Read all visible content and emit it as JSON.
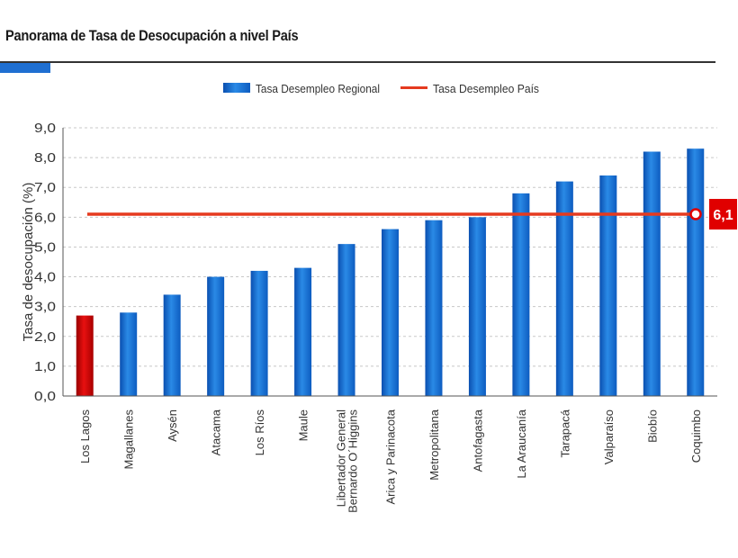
{
  "header": {
    "title": "Panorama de Tasa de Desocupación a nivel País"
  },
  "colors": {
    "bar": "#1f78d6",
    "bar_highlight": "#d20000",
    "reference_line": "#e53a1f",
    "callout_bg": "#e00000",
    "title_accent": "#1f6fd1"
  },
  "chart_data": {
    "type": "bar",
    "ylabel": "Tasa de desocupación (%)",
    "ylim": [
      0,
      9
    ],
    "yticks": [
      "0,0",
      "1,0",
      "2,0",
      "3,0",
      "4,0",
      "5,0",
      "6,0",
      "7,0",
      "8,0",
      "9,0"
    ],
    "grid": true,
    "legend_position": "top-center",
    "categories": [
      [
        "Los Lagos"
      ],
      [
        "Magallanes"
      ],
      [
        "Aysén"
      ],
      [
        "Atacama"
      ],
      [
        "Los Ríos"
      ],
      [
        "Maule"
      ],
      [
        "Libertador General",
        "Bernardo O´Higgins"
      ],
      [
        "Arica y Parinacota"
      ],
      [
        "Metropolitana"
      ],
      [
        "Antofagasta"
      ],
      [
        "La Araucanía"
      ],
      [
        "Tarapacá"
      ],
      [
        "Valparaíso"
      ],
      [
        "Biobío"
      ],
      [
        "Coquimbo"
      ]
    ],
    "series": [
      {
        "name": "Tasa Desempleo Regional",
        "values": [
          2.7,
          2.8,
          3.4,
          4.0,
          4.2,
          4.3,
          5.1,
          5.6,
          5.9,
          6.0,
          6.8,
          7.2,
          7.4,
          8.2,
          8.3
        ],
        "highlight_index": 0
      },
      {
        "name": "Tasa Desempleo País",
        "value": 6.1,
        "label": "6,1"
      }
    ]
  }
}
